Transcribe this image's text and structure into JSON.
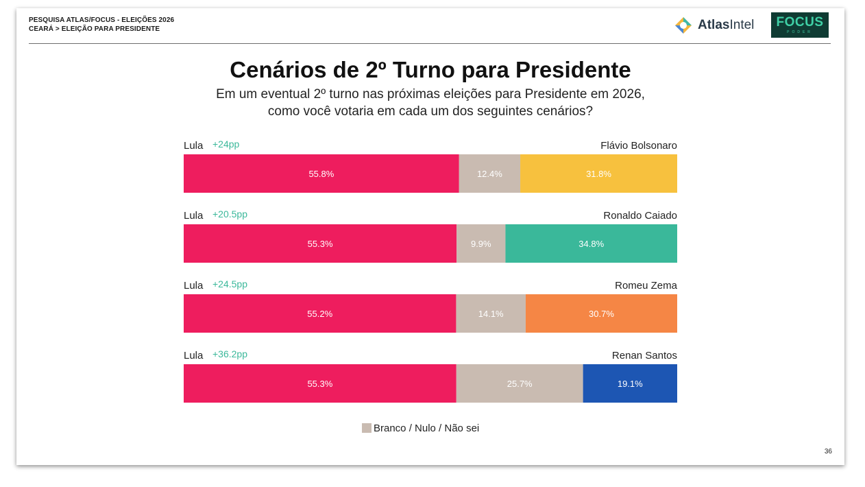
{
  "header": {
    "line1": "PESQUISA ATLAS/FOCUS - ELEIÇÕES 2026",
    "line2": "CEARÁ > ELEIÇÃO PARA PRESIDENTE"
  },
  "logos": {
    "atlas_bold": "Atlas",
    "atlas_light": "Intel",
    "focus_main": "FOCUS",
    "focus_sub": "PODER"
  },
  "chart_data": {
    "type": "bar",
    "orientation": "horizontal-stacked-100",
    "title": "Cenários de 2º Turno para Presidente",
    "subtitle_line1": "Em um eventual 2º turno nas próximas eleições para Presidente em 2026,",
    "subtitle_line2": "como você votaria em cada um dos seguintes cenários?",
    "scenarios": [
      {
        "left": "Lula",
        "diff": "+24pp",
        "right": "Flávio Bolsonaro",
        "values": [
          55.8,
          12.4,
          31.8
        ],
        "labels": [
          "55.8%",
          "12.4%",
          "31.8%"
        ],
        "right_color": "#f7c13e"
      },
      {
        "left": "Lula",
        "diff": "+20.5pp",
        "right": "Ronaldo Caiado",
        "values": [
          55.3,
          9.9,
          34.8
        ],
        "labels": [
          "55.3%",
          "9.9%",
          "34.8%"
        ],
        "right_color": "#3ab89a"
      },
      {
        "left": "Lula",
        "diff": "+24.5pp",
        "right": "Romeu Zema",
        "values": [
          55.2,
          14.1,
          30.7
        ],
        "labels": [
          "55.2%",
          "14.1%",
          "30.7%"
        ],
        "right_color": "#f58645"
      },
      {
        "left": "Lula",
        "diff": "+36.2pp",
        "right": "Renan Santos",
        "values": [
          55.3,
          25.7,
          19.1
        ],
        "labels": [
          "55.3%",
          "25.7%",
          "19.1%"
        ],
        "right_color": "#1d56b3"
      }
    ],
    "colors": {
      "lula": "#ee1d5e",
      "neutral": "#c9bbb1"
    },
    "legend": [
      {
        "label": "Branco / Nulo / Não sei",
        "color": "#c9bbb1"
      }
    ]
  },
  "page_number": "36"
}
